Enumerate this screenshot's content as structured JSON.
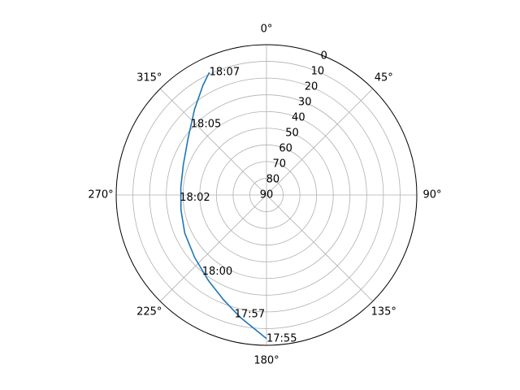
{
  "chart_data": {
    "type": "line",
    "projection": "polar",
    "theta_zero_location": "N",
    "theta_direction": "clockwise",
    "radial_axis": {
      "quantity": "elevation_deg",
      "inverted": true,
      "range": [
        0,
        90
      ],
      "ticks": [
        0,
        10,
        20,
        30,
        40,
        50,
        60,
        70,
        80,
        90
      ],
      "tick_labels": [
        "0",
        "10",
        "20",
        "30",
        "40",
        "50",
        "60",
        "70",
        "80",
        "90"
      ],
      "tick_label_angle_deg": 22.5
    },
    "angular_axis": {
      "quantity": "azimuth_deg",
      "ticks": [
        0,
        45,
        90,
        135,
        180,
        225,
        270,
        315
      ],
      "tick_labels": [
        "0°",
        "45°",
        "90°",
        "135°",
        "180°",
        "225°",
        "270°",
        "315°"
      ]
    },
    "grid": true,
    "series": [
      {
        "color": "#1f77b4",
        "points": [
          {
            "az": 180.0,
            "el": 4.0
          },
          {
            "az": 192.0,
            "el": 15.0
          },
          {
            "az": 202.0,
            "el": 22.0
          },
          {
            "az": 214.0,
            "el": 28.0
          },
          {
            "az": 229.0,
            "el": 33.0
          },
          {
            "az": 245.0,
            "el": 36.0
          },
          {
            "az": 260.0,
            "el": 38.0
          },
          {
            "az": 275.0,
            "el": 38.5
          },
          {
            "az": 290.0,
            "el": 37.0
          },
          {
            "az": 306.0,
            "el": 32.0
          },
          {
            "az": 320.0,
            "el": 23.0
          },
          {
            "az": 330.0,
            "el": 14.0
          },
          {
            "az": 335.0,
            "el": 9.0
          }
        ]
      }
    ],
    "annotations": [
      {
        "text": "17:55",
        "az": 180.0,
        "el": 4.0
      },
      {
        "text": "17:57",
        "az": 195.0,
        "el": 16.0
      },
      {
        "text": "18:00",
        "az": 220.0,
        "el": 30.0
      },
      {
        "text": "18:02",
        "az": 268.0,
        "el": 38.0
      },
      {
        "text": "18:05",
        "az": 313.0,
        "el": 28.0
      },
      {
        "text": "18:07",
        "az": 335.0,
        "el": 9.0
      }
    ]
  }
}
